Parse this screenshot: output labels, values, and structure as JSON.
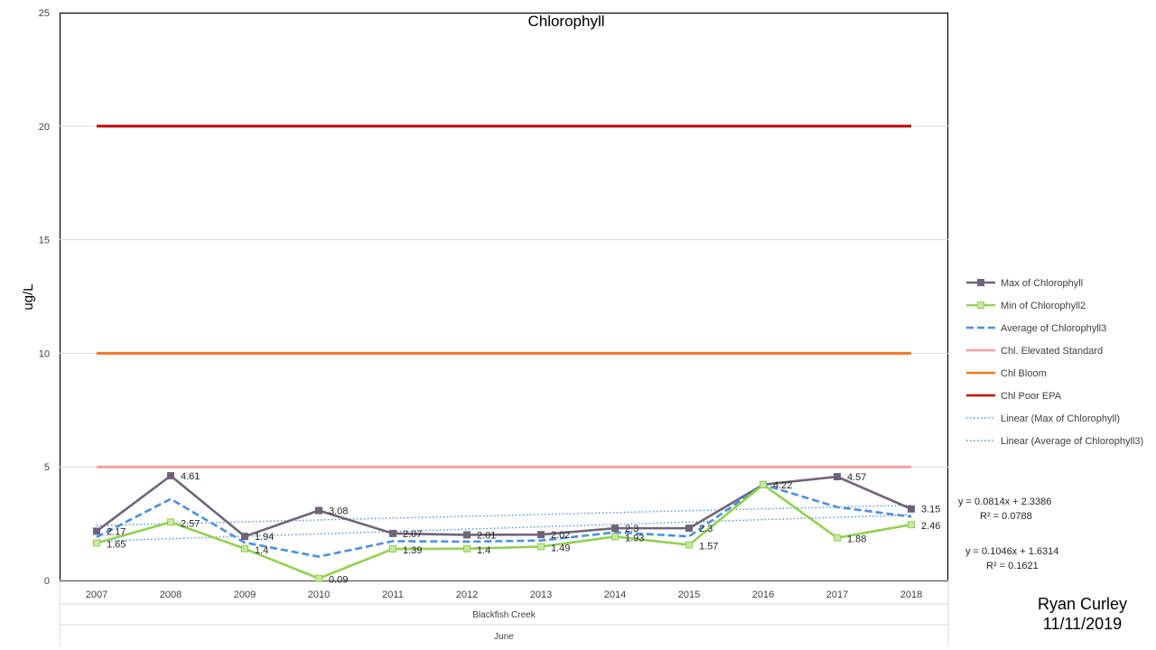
{
  "chart_data": {
    "type": "line",
    "title": "Chlorophyll",
    "ylabel": "ug/L",
    "xlabel": "",
    "ylim": [
      0,
      25
    ],
    "yticks": [
      0,
      5,
      10,
      15,
      20,
      25
    ],
    "grid": true,
    "legend_position": "right",
    "categories": [
      "2007",
      "2008",
      "2009",
      "2010",
      "2011",
      "2012",
      "2013",
      "2014",
      "2015",
      "2016",
      "2017",
      "2018"
    ],
    "group_labels": [
      "Blackfish Creek",
      "June"
    ],
    "series": [
      {
        "name": "Max of Chlorophyll",
        "color": "#6f6379",
        "style": "solid",
        "marker": "square",
        "values": [
          2.17,
          4.61,
          1.94,
          3.08,
          2.07,
          2.01,
          2.02,
          2.3,
          2.3,
          4.22,
          4.57,
          3.15
        ],
        "labels": [
          "2.17",
          "4.61",
          "1.94",
          "3.08",
          "2.07",
          "2.01",
          "2.02",
          "2.3",
          "2.3",
          "4.22",
          "4.57",
          "3.15"
        ]
      },
      {
        "name": "Min of Chlorophyll2",
        "color": "#92d050",
        "style": "solid",
        "marker": "square",
        "values": [
          1.65,
          2.57,
          1.4,
          0.09,
          1.39,
          1.4,
          1.49,
          1.93,
          1.57,
          4.22,
          1.88,
          2.46
        ],
        "labels": [
          "1.65",
          "2.57",
          "1.4",
          "0.09",
          "1.39",
          "1.4",
          "1.49",
          "1.93",
          "1.57",
          "",
          "1.88",
          "2.46"
        ]
      },
      {
        "name": "Average of Chlorophyll3",
        "color": "#4a90e2",
        "style": "dashed",
        "marker": "none",
        "values": [
          1.91,
          3.59,
          1.67,
          1.05,
          1.73,
          1.71,
          1.76,
          2.12,
          1.94,
          4.22,
          3.23,
          2.81
        ]
      },
      {
        "name": "Chl. Elevated Standard",
        "color": "#f4a0a0",
        "style": "solid",
        "constant": 5
      },
      {
        "name": "Chl Bloom",
        "color": "#f07a20",
        "style": "solid",
        "constant": 10
      },
      {
        "name": "Chl Poor EPA",
        "color": "#c00000",
        "style": "solid",
        "constant": 20
      },
      {
        "name": "Linear (Max of Chlorophyll)",
        "color": "#4a90e2",
        "style": "dotted",
        "trend_of": 0,
        "slope": 0.0814,
        "intercept": 2.3386
      },
      {
        "name": "Linear (Average of Chlorophyll3)",
        "color": "#4a90e2",
        "style": "dotted",
        "trend_of": 2,
        "slope": 0.1046,
        "intercept": 1.6314
      }
    ],
    "trend_equations": [
      {
        "equation": "y = 0.0814x + 2.3386",
        "r2": "R² = 0.0788"
      },
      {
        "equation": "y = 0.1046x + 1.6314",
        "r2": "R² = 0.1621"
      }
    ]
  },
  "author": {
    "name": "Ryan Curley",
    "date": "11/11/2019"
  }
}
